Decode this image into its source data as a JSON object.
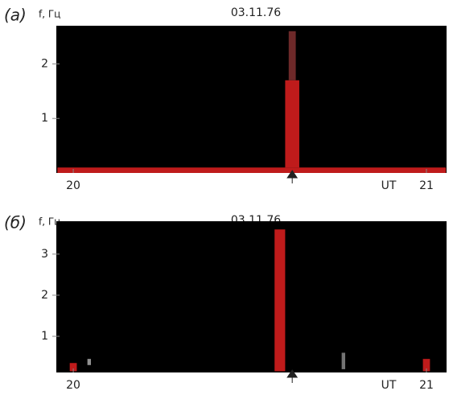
{
  "chart_data": [
    {
      "type": "spectrogram",
      "panel_label": "(а)",
      "ylabel": "f, Гц",
      "title": "03.11.76",
      "xlabel": "UT",
      "xlim": [
        19.952,
        21.057
      ],
      "xticks": [
        20,
        21
      ],
      "ylim": [
        0,
        2.7
      ],
      "yticks": [
        1,
        2
      ],
      "marker_x": 20.62,
      "bursts": [
        {
          "t": [
            19.955,
            21.055
          ],
          "f": [
            0,
            0.1
          ],
          "color": "#e02020"
        },
        {
          "t": [
            20.6,
            20.64
          ],
          "f": [
            0.1,
            1.7
          ],
          "color": "#e02020"
        },
        {
          "t": [
            20.61,
            20.63
          ],
          "f": [
            1.7,
            2.6
          ],
          "color": "#803030"
        }
      ]
    },
    {
      "type": "spectrogram",
      "panel_label": "(б)",
      "ylabel": "f, Гц",
      "title": "03.11.76",
      "xlabel": "UT",
      "xlim": [
        19.952,
        21.057
      ],
      "xticks": [
        20,
        21
      ],
      "ylim": [
        0.12,
        3.8
      ],
      "yticks": [
        1,
        2,
        3
      ],
      "marker_x": 20.62,
      "bursts": [
        {
          "t": [
            20.57,
            20.6
          ],
          "f": [
            0.15,
            3.6
          ],
          "color": "#e02020"
        },
        {
          "t": [
            19.99,
            20.01
          ],
          "f": [
            0.15,
            0.35
          ],
          "color": "#e02020"
        },
        {
          "t": [
            20.99,
            21.01
          ],
          "f": [
            0.15,
            0.45
          ],
          "color": "#e02020"
        },
        {
          "t": [
            20.04,
            20.05
          ],
          "f": [
            0.3,
            0.45
          ],
          "color": "#aaaaaa"
        },
        {
          "t": [
            20.76,
            20.77
          ],
          "f": [
            0.2,
            0.6
          ],
          "color": "#888888"
        }
      ]
    }
  ]
}
